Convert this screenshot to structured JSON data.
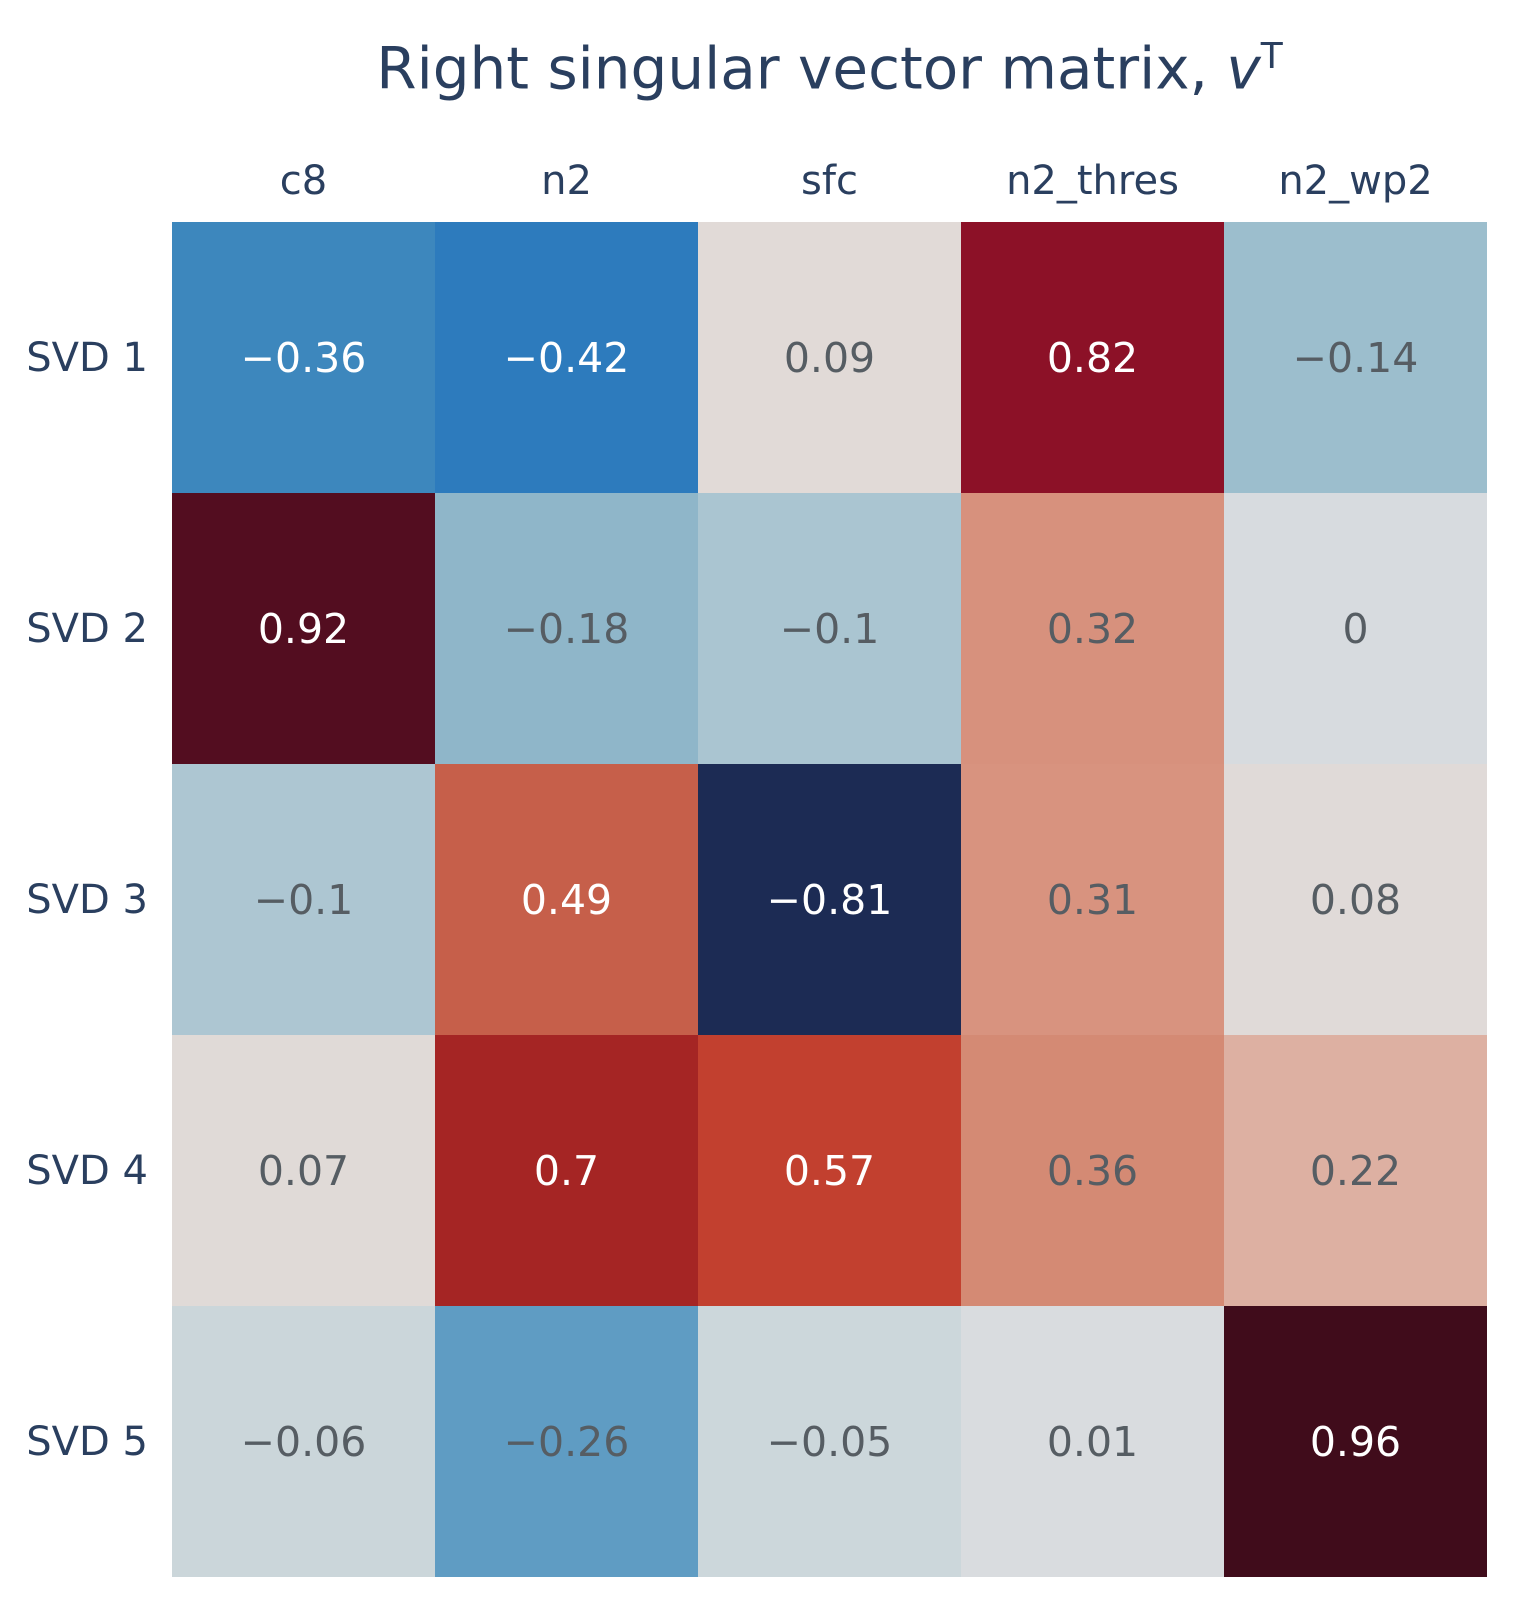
{
  "chart_data": {
    "type": "heatmap",
    "title_prefix": "Right singular vector matrix, ",
    "title_var": "v",
    "title_sup": "T",
    "columns": [
      "c8",
      "n2",
      "sfc",
      "n2_thres",
      "n2_wp2"
    ],
    "rows": [
      "SVD 1",
      "SVD 2",
      "SVD 3",
      "SVD 4",
      "SVD 5"
    ],
    "values": [
      [
        -0.36,
        -0.42,
        0.09,
        0.82,
        -0.14
      ],
      [
        0.92,
        -0.18,
        -0.1,
        0.32,
        0
      ],
      [
        -0.1,
        0.49,
        -0.81,
        0.31,
        0.08
      ],
      [
        0.07,
        0.7,
        0.57,
        0.36,
        0.22
      ],
      [
        -0.06,
        -0.26,
        -0.05,
        0.01,
        0.96
      ]
    ],
    "cell_labels": [
      [
        "−0.36",
        "−0.42",
        "0.09",
        "0.82",
        "−0.14"
      ],
      [
        "0.92",
        "−0.18",
        "−0.1",
        "0.32",
        "0"
      ],
      [
        "−0.1",
        "0.49",
        "−0.81",
        "0.31",
        "0.08"
      ],
      [
        "0.07",
        "0.7",
        "0.57",
        "0.36",
        "0.22"
      ],
      [
        "−0.06",
        "−0.26",
        "−0.05",
        "0.01",
        "0.96"
      ]
    ],
    "cell_colors": [
      [
        "#3d87bd",
        "#2d7bbd",
        "#e1dad7",
        "#8c1127",
        "#9cbecd"
      ],
      [
        "#530d20",
        "#8fb6c9",
        "#aac5d1",
        "#d7917d",
        "#d7dbdf"
      ],
      [
        "#adc6d2",
        "#c65f4a",
        "#1c2b54",
        "#d8937f",
        "#e0dad8"
      ],
      [
        "#e0dad7",
        "#a52524",
        "#c2402f",
        "#d48a74",
        "#ddb0a2"
      ],
      [
        "#cbd6da",
        "#5f9cc3",
        "#ccd7db",
        "#d9dcdf",
        "#400c1b"
      ]
    ],
    "colorscale": "diverging RdBu reversed (blue = negative, red = positive)",
    "zmin": -0.81,
    "zmax": 0.96,
    "legend": "none",
    "grid": "off",
    "colors": {
      "title": "#2a3f5f",
      "axis_label": "#2a3f5f",
      "cell_text_dark": "#565d63",
      "cell_text_light": "#ffffff",
      "background": "#ffffff"
    }
  }
}
